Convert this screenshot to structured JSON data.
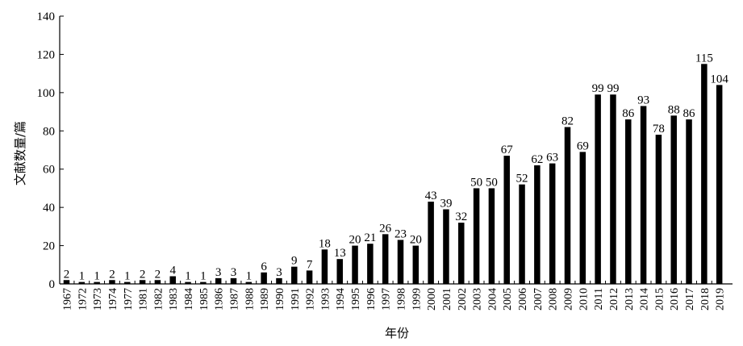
{
  "chart_data": {
    "type": "bar",
    "title": "",
    "xlabel": "年份",
    "ylabel": "文献数量/篇",
    "ylim": [
      0,
      140
    ],
    "yticks": [
      0,
      20,
      40,
      60,
      80,
      100,
      120,
      140
    ],
    "grid": false,
    "legend": "none",
    "bar_color": "#000000",
    "categories": [
      "1967",
      "1972",
      "1973",
      "1974",
      "1977",
      "1981",
      "1982",
      "1983",
      "1984",
      "1985",
      "1986",
      "1987",
      "1988",
      "1989",
      "1990",
      "1991",
      "1992",
      "1993",
      "1994",
      "1995",
      "1996",
      "1997",
      "1998",
      "1999",
      "2000",
      "2001",
      "2002",
      "2003",
      "2004",
      "2005",
      "2006",
      "2007",
      "2008",
      "2009",
      "2010",
      "2011",
      "2012",
      "2013",
      "2014",
      "2015",
      "2016",
      "2017",
      "2018",
      "2019"
    ],
    "values": [
      2,
      1,
      1,
      2,
      1,
      2,
      2,
      4,
      1,
      1,
      3,
      3,
      1,
      6,
      3,
      9,
      7,
      18,
      13,
      20,
      21,
      26,
      23,
      20,
      43,
      39,
      32,
      50,
      50,
      67,
      52,
      62,
      63,
      82,
      69,
      99,
      99,
      86,
      93,
      78,
      88,
      86,
      115,
      104
    ],
    "data_labels": [
      "2",
      "1",
      "1",
      "2",
      "1",
      "2",
      "2",
      "4",
      "1",
      "1",
      "3",
      "3",
      "1",
      "6",
      "3",
      "9",
      "7",
      "18",
      "13",
      "20",
      "21",
      "26",
      "23",
      "20",
      "43",
      "39",
      "32",
      "50",
      "50",
      "67",
      "52",
      "62",
      "63",
      "82",
      "69",
      "99",
      "99",
      "86",
      "93",
      "78",
      "88",
      "86",
      "115",
      "104"
    ]
  }
}
